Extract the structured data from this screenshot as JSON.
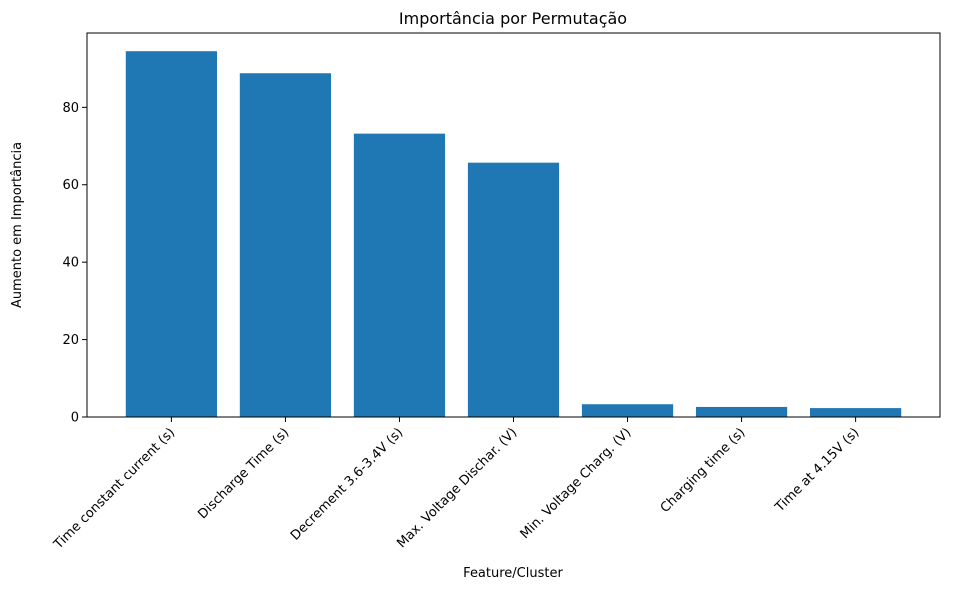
{
  "chart_data": {
    "type": "bar",
    "title": "Importância por Permutação",
    "xlabel": "Feature/Cluster",
    "ylabel": "Aumento em Importância",
    "categories": [
      "Time constant current (s)",
      "Discharge Time (s)",
      "Decrement 3.6-3.4V (s)",
      "Max. Voltage Dischar. (V)",
      "Min. Voltage Charg. (V)",
      "Charging time (s)",
      "Time at 4.15V (s)"
    ],
    "values": [
      94.5,
      88.8,
      73.2,
      65.7,
      3.3,
      2.6,
      2.3
    ],
    "ylim": [
      0,
      99.2
    ],
    "yticks": [
      0,
      20,
      40,
      60,
      80
    ],
    "bar_color": "#1f77b4",
    "grid": false
  }
}
